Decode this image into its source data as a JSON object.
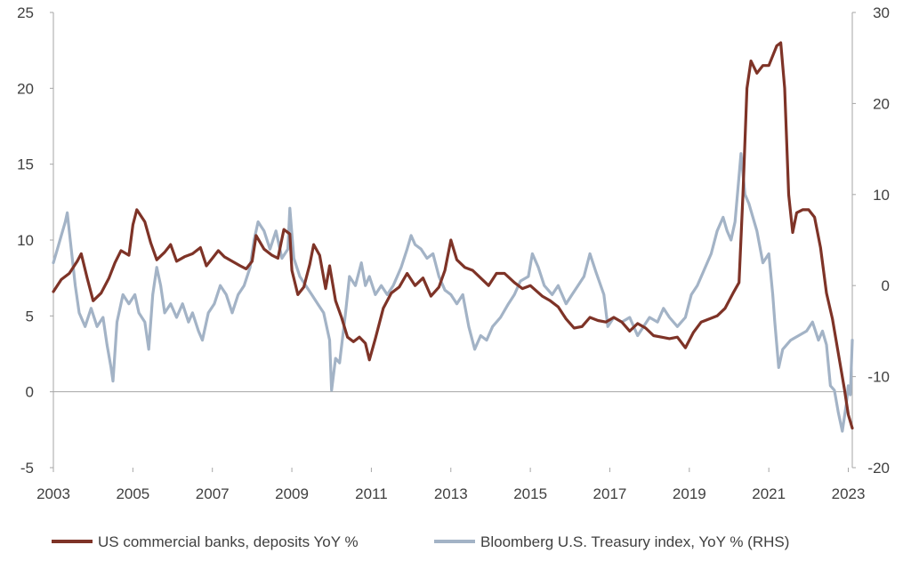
{
  "chart_data": {
    "type": "line",
    "title": "",
    "x_ticks": [
      "2003",
      "2005",
      "2007",
      "2009",
      "2011",
      "2013",
      "2015",
      "2017",
      "2019",
      "2021",
      "2023"
    ],
    "x_range": [
      2003.0,
      2023.1
    ],
    "y_left": {
      "range": [
        -5,
        25
      ],
      "ticks": [
        "-5",
        "0",
        "5",
        "10",
        "15",
        "20",
        "25"
      ]
    },
    "y_right": {
      "range": [
        -20,
        30
      ],
      "ticks": [
        "-20",
        "-10",
        "0",
        "10",
        "20",
        "30"
      ]
    },
    "series": [
      {
        "name": "US commercial banks, deposits YoY %",
        "axis": "left",
        "color": "#7e3327",
        "points": [
          [
            2003.0,
            6.6
          ],
          [
            2003.2,
            7.4
          ],
          [
            2003.4,
            7.8
          ],
          [
            2003.6,
            8.6
          ],
          [
            2003.7,
            9.1
          ],
          [
            2003.85,
            7.5
          ],
          [
            2004.0,
            6.0
          ],
          [
            2004.2,
            6.5
          ],
          [
            2004.4,
            7.5
          ],
          [
            2004.55,
            8.5
          ],
          [
            2004.7,
            9.3
          ],
          [
            2004.9,
            9.0
          ],
          [
            2005.0,
            11.0
          ],
          [
            2005.1,
            12.0
          ],
          [
            2005.3,
            11.2
          ],
          [
            2005.45,
            9.8
          ],
          [
            2005.6,
            8.7
          ],
          [
            2005.8,
            9.2
          ],
          [
            2005.95,
            9.7
          ],
          [
            2006.1,
            8.6
          ],
          [
            2006.3,
            8.9
          ],
          [
            2006.5,
            9.1
          ],
          [
            2006.7,
            9.5
          ],
          [
            2006.85,
            8.3
          ],
          [
            2007.0,
            8.8
          ],
          [
            2007.15,
            9.3
          ],
          [
            2007.3,
            8.9
          ],
          [
            2007.5,
            8.6
          ],
          [
            2007.7,
            8.3
          ],
          [
            2007.85,
            8.1
          ],
          [
            2008.0,
            8.6
          ],
          [
            2008.1,
            10.3
          ],
          [
            2008.3,
            9.4
          ],
          [
            2008.5,
            9.0
          ],
          [
            2008.65,
            8.8
          ],
          [
            2008.8,
            10.7
          ],
          [
            2008.95,
            10.4
          ],
          [
            2009.0,
            8.0
          ],
          [
            2009.15,
            6.4
          ],
          [
            2009.3,
            6.9
          ],
          [
            2009.45,
            8.4
          ],
          [
            2009.55,
            9.7
          ],
          [
            2009.7,
            9.0
          ],
          [
            2009.85,
            6.8
          ],
          [
            2009.95,
            8.3
          ],
          [
            2010.1,
            6.0
          ],
          [
            2010.25,
            4.9
          ],
          [
            2010.4,
            3.6
          ],
          [
            2010.55,
            3.3
          ],
          [
            2010.7,
            3.6
          ],
          [
            2010.85,
            3.2
          ],
          [
            2010.95,
            2.1
          ],
          [
            2011.1,
            3.5
          ],
          [
            2011.3,
            5.5
          ],
          [
            2011.5,
            6.5
          ],
          [
            2011.7,
            6.9
          ],
          [
            2011.9,
            7.8
          ],
          [
            2012.1,
            7.0
          ],
          [
            2012.3,
            7.5
          ],
          [
            2012.5,
            6.3
          ],
          [
            2012.7,
            6.9
          ],
          [
            2012.85,
            8.0
          ],
          [
            2013.0,
            10.0
          ],
          [
            2013.15,
            8.7
          ],
          [
            2013.35,
            8.2
          ],
          [
            2013.55,
            8.0
          ],
          [
            2013.75,
            7.5
          ],
          [
            2013.95,
            7.0
          ],
          [
            2014.15,
            7.8
          ],
          [
            2014.35,
            7.8
          ],
          [
            2014.6,
            7.2
          ],
          [
            2014.8,
            6.8
          ],
          [
            2015.0,
            7.0
          ],
          [
            2015.3,
            6.3
          ],
          [
            2015.5,
            6.0
          ],
          [
            2015.7,
            5.6
          ],
          [
            2015.9,
            4.8
          ],
          [
            2016.1,
            4.2
          ],
          [
            2016.3,
            4.3
          ],
          [
            2016.5,
            4.9
          ],
          [
            2016.7,
            4.7
          ],
          [
            2016.9,
            4.6
          ],
          [
            2017.1,
            4.9
          ],
          [
            2017.3,
            4.6
          ],
          [
            2017.5,
            4.0
          ],
          [
            2017.7,
            4.5
          ],
          [
            2017.9,
            4.2
          ],
          [
            2018.1,
            3.7
          ],
          [
            2018.3,
            3.6
          ],
          [
            2018.5,
            3.5
          ],
          [
            2018.7,
            3.6
          ],
          [
            2018.9,
            2.9
          ],
          [
            2019.1,
            3.9
          ],
          [
            2019.3,
            4.6
          ],
          [
            2019.5,
            4.8
          ],
          [
            2019.7,
            5.0
          ],
          [
            2019.9,
            5.5
          ],
          [
            2020.1,
            6.5
          ],
          [
            2020.25,
            7.2
          ],
          [
            2020.35,
            13.0
          ],
          [
            2020.45,
            20.0
          ],
          [
            2020.55,
            21.8
          ],
          [
            2020.7,
            21.0
          ],
          [
            2020.85,
            21.5
          ],
          [
            2021.0,
            21.5
          ],
          [
            2021.2,
            22.8
          ],
          [
            2021.3,
            23.0
          ],
          [
            2021.4,
            20.0
          ],
          [
            2021.5,
            13.0
          ],
          [
            2021.6,
            10.5
          ],
          [
            2021.7,
            11.8
          ],
          [
            2021.85,
            12.0
          ],
          [
            2022.0,
            12.0
          ],
          [
            2022.15,
            11.5
          ],
          [
            2022.3,
            9.5
          ],
          [
            2022.45,
            6.5
          ],
          [
            2022.6,
            4.8
          ],
          [
            2022.75,
            2.5
          ],
          [
            2022.9,
            0.2
          ],
          [
            2023.0,
            -1.5
          ],
          [
            2023.1,
            -2.4
          ]
        ]
      },
      {
        "name": "Bloomberg U.S. Treasury index, YoY % (RHS)",
        "axis": "right",
        "color": "#a3b3c6",
        "points": [
          [
            2003.0,
            2.5
          ],
          [
            2003.1,
            4.0
          ],
          [
            2003.2,
            5.5
          ],
          [
            2003.3,
            7.0
          ],
          [
            2003.35,
            8.0
          ],
          [
            2003.45,
            4.0
          ],
          [
            2003.55,
            0.0
          ],
          [
            2003.65,
            -3.0
          ],
          [
            2003.8,
            -4.5
          ],
          [
            2003.95,
            -2.5
          ],
          [
            2004.1,
            -4.5
          ],
          [
            2004.25,
            -3.5
          ],
          [
            2004.35,
            -6.5
          ],
          [
            2004.45,
            -9.0
          ],
          [
            2004.5,
            -10.5
          ],
          [
            2004.6,
            -4.0
          ],
          [
            2004.75,
            -1.0
          ],
          [
            2004.9,
            -2.0
          ],
          [
            2005.05,
            -1.0
          ],
          [
            2005.15,
            -3.0
          ],
          [
            2005.3,
            -4.0
          ],
          [
            2005.4,
            -7.0
          ],
          [
            2005.5,
            -1.0
          ],
          [
            2005.6,
            2.0
          ],
          [
            2005.7,
            0.0
          ],
          [
            2005.8,
            -3.0
          ],
          [
            2005.95,
            -2.0
          ],
          [
            2006.1,
            -3.5
          ],
          [
            2006.25,
            -2.0
          ],
          [
            2006.4,
            -4.0
          ],
          [
            2006.5,
            -3.0
          ],
          [
            2006.65,
            -5.0
          ],
          [
            2006.75,
            -6.0
          ],
          [
            2006.9,
            -3.0
          ],
          [
            2007.05,
            -2.0
          ],
          [
            2007.2,
            0.0
          ],
          [
            2007.35,
            -1.0
          ],
          [
            2007.5,
            -3.0
          ],
          [
            2007.65,
            -1.0
          ],
          [
            2007.8,
            0.0
          ],
          [
            2007.95,
            2.0
          ],
          [
            2008.05,
            5.0
          ],
          [
            2008.15,
            7.0
          ],
          [
            2008.3,
            6.0
          ],
          [
            2008.45,
            4.0
          ],
          [
            2008.6,
            6.0
          ],
          [
            2008.75,
            3.0
          ],
          [
            2008.9,
            4.0
          ],
          [
            2008.95,
            8.5
          ],
          [
            2009.05,
            3.0
          ],
          [
            2009.2,
            1.0
          ],
          [
            2009.35,
            0.0
          ],
          [
            2009.5,
            -1.0
          ],
          [
            2009.65,
            -2.0
          ],
          [
            2009.8,
            -3.0
          ],
          [
            2009.95,
            -6.0
          ],
          [
            2010.0,
            -11.5
          ],
          [
            2010.1,
            -8.0
          ],
          [
            2010.2,
            -8.5
          ],
          [
            2010.35,
            -3.0
          ],
          [
            2010.45,
            1.0
          ],
          [
            2010.6,
            0.0
          ],
          [
            2010.75,
            2.5
          ],
          [
            2010.85,
            0.0
          ],
          [
            2010.95,
            1.0
          ],
          [
            2011.1,
            -1.0
          ],
          [
            2011.25,
            0.0
          ],
          [
            2011.4,
            -1.0
          ],
          [
            2011.55,
            0.0
          ],
          [
            2011.75,
            2.0
          ],
          [
            2011.9,
            4.0
          ],
          [
            2012.0,
            5.5
          ],
          [
            2012.1,
            4.5
          ],
          [
            2012.25,
            4.0
          ],
          [
            2012.4,
            3.0
          ],
          [
            2012.55,
            3.5
          ],
          [
            2012.7,
            1.0
          ],
          [
            2012.85,
            -0.5
          ],
          [
            2013.0,
            -1.0
          ],
          [
            2013.15,
            -2.0
          ],
          [
            2013.3,
            -1.0
          ],
          [
            2013.45,
            -4.5
          ],
          [
            2013.6,
            -7.0
          ],
          [
            2013.75,
            -5.5
          ],
          [
            2013.9,
            -6.0
          ],
          [
            2014.05,
            -4.5
          ],
          [
            2014.25,
            -3.5
          ],
          [
            2014.45,
            -2.0
          ],
          [
            2014.6,
            -1.0
          ],
          [
            2014.75,
            0.5
          ],
          [
            2014.95,
            1.0
          ],
          [
            2015.05,
            3.5
          ],
          [
            2015.2,
            2.0
          ],
          [
            2015.35,
            0.0
          ],
          [
            2015.55,
            -1.0
          ],
          [
            2015.7,
            0.0
          ],
          [
            2015.9,
            -2.0
          ],
          [
            2016.05,
            -1.0
          ],
          [
            2016.2,
            0.0
          ],
          [
            2016.35,
            1.0
          ],
          [
            2016.5,
            3.5
          ],
          [
            2016.65,
            1.5
          ],
          [
            2016.85,
            -1.0
          ],
          [
            2016.95,
            -4.5
          ],
          [
            2017.1,
            -3.5
          ],
          [
            2017.3,
            -4.0
          ],
          [
            2017.5,
            -3.5
          ],
          [
            2017.7,
            -5.5
          ],
          [
            2017.85,
            -4.5
          ],
          [
            2018.0,
            -3.5
          ],
          [
            2018.2,
            -4.0
          ],
          [
            2018.35,
            -2.5
          ],
          [
            2018.5,
            -3.5
          ],
          [
            2018.7,
            -4.5
          ],
          [
            2018.9,
            -3.5
          ],
          [
            2019.05,
            -1.0
          ],
          [
            2019.2,
            0.0
          ],
          [
            2019.4,
            2.0
          ],
          [
            2019.55,
            3.5
          ],
          [
            2019.7,
            6.0
          ],
          [
            2019.85,
            7.5
          ],
          [
            2019.95,
            6.0
          ],
          [
            2020.05,
            5.0
          ],
          [
            2020.15,
            7.0
          ],
          [
            2020.25,
            12.0
          ],
          [
            2020.3,
            14.5
          ],
          [
            2020.4,
            10.0
          ],
          [
            2020.5,
            9.0
          ],
          [
            2020.6,
            7.5
          ],
          [
            2020.7,
            6.0
          ],
          [
            2020.85,
            2.5
          ],
          [
            2021.0,
            3.5
          ],
          [
            2021.1,
            -1.0
          ],
          [
            2021.15,
            -4.0
          ],
          [
            2021.25,
            -9.0
          ],
          [
            2021.35,
            -7.0
          ],
          [
            2021.55,
            -6.0
          ],
          [
            2021.75,
            -5.5
          ],
          [
            2021.95,
            -5.0
          ],
          [
            2022.1,
            -4.0
          ],
          [
            2022.25,
            -6.0
          ],
          [
            2022.35,
            -5.0
          ],
          [
            2022.45,
            -6.5
          ],
          [
            2022.55,
            -11.0
          ],
          [
            2022.65,
            -11.5
          ],
          [
            2022.75,
            -14.0
          ],
          [
            2022.85,
            -16.0
          ],
          [
            2022.95,
            -13.0
          ],
          [
            2023.0,
            -11.0
          ],
          [
            2023.05,
            -12.0
          ],
          [
            2023.1,
            -6.0
          ]
        ]
      }
    ],
    "legend": {
      "position": "bottom",
      "items": [
        "US commercial banks, deposits YoY %",
        "Bloomberg U.S. Treasury index, YoY % (RHS)"
      ]
    },
    "grid": false
  }
}
